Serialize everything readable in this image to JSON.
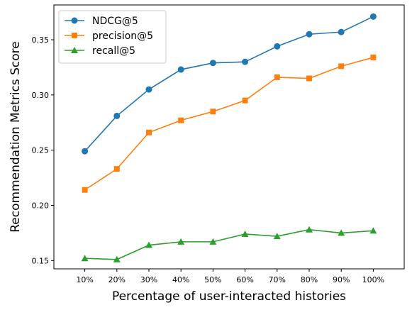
{
  "chart_data": {
    "type": "line",
    "title": "",
    "xlabel": "Percentage of user-interacted histories",
    "ylabel": "Recommendation Metrics Score",
    "categories": [
      "10%",
      "20%",
      "30%",
      "40%",
      "50%",
      "60%",
      "70%",
      "80%",
      "90%",
      "100%"
    ],
    "ylim": [
      0.1425,
      0.3815
    ],
    "yticks": [
      0.15,
      0.2,
      0.25,
      0.3,
      0.35
    ],
    "ytick_labels": [
      "0.15",
      "0.20",
      "0.25",
      "0.30",
      "0.35"
    ],
    "grid": false,
    "legend_position": "top-left",
    "series": [
      {
        "name": "NDCG@5",
        "color": "#1f77b4",
        "marker": "circle",
        "values": [
          0.249,
          0.281,
          0.305,
          0.323,
          0.329,
          0.33,
          0.344,
          0.355,
          0.357,
          0.371
        ]
      },
      {
        "name": "precision@5",
        "color": "#ff7f0e",
        "marker": "square",
        "values": [
          0.214,
          0.233,
          0.266,
          0.277,
          0.285,
          0.295,
          0.316,
          0.315,
          0.326,
          0.334
        ]
      },
      {
        "name": "recall@5",
        "color": "#2ca02c",
        "marker": "triangle",
        "values": [
          0.152,
          0.151,
          0.164,
          0.167,
          0.167,
          0.174,
          0.172,
          0.178,
          0.175,
          0.177
        ]
      }
    ]
  }
}
